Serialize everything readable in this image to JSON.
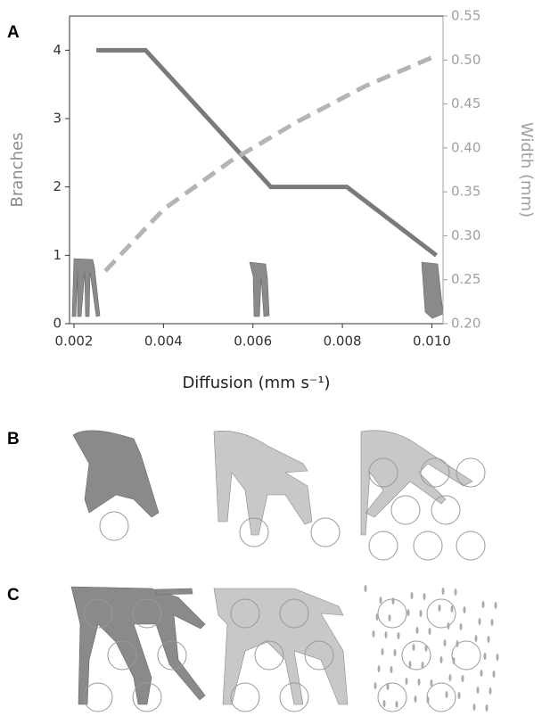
{
  "panel_labels": [
    "A",
    "B",
    "C"
  ],
  "chart_data": {
    "type": "line",
    "xlabel": "Diffusion (mm s⁻¹)",
    "ylabel": "Branches",
    "y2label": "Width (mm)",
    "xlim": [
      0.0019,
      0.01025
    ],
    "xticks": [
      0.002,
      0.004,
      0.006,
      0.008,
      {
        "value": 0.01,
        "label": "0.010"
      }
    ],
    "ylim": [
      0,
      4.5
    ],
    "yticks": [
      0,
      1,
      2,
      3,
      4
    ],
    "y2lim": [
      0.2,
      0.55
    ],
    "y2ticks": [
      {
        "value": 0.2,
        "label": "0.20"
      },
      0.25,
      {
        "value": 0.3,
        "label": "0.30"
      },
      0.35,
      {
        "value": 0.4,
        "label": "0.40"
      },
      0.45,
      {
        "value": 0.5,
        "label": "0.50"
      },
      0.55
    ],
    "series": [
      {
        "color": "#7a7a7a",
        "dash": false,
        "x": [
          0.0025,
          0.0036,
          0.0064,
          0.0081,
          0.0101
        ],
        "values": [
          4,
          4,
          2,
          2,
          1
        ]
      },
      {
        "color": "#b4b4b4",
        "dash": true,
        "axis": "y2",
        "x": [
          0.0027,
          0.004,
          0.0055,
          0.007,
          0.0085,
          0.0101
        ],
        "values": [
          0.26,
          0.33,
          0.385,
          0.43,
          0.47,
          0.505
        ]
      }
    ],
    "ylabel_color": "#8c8c8c",
    "y2_color": "#a0a0a0"
  }
}
